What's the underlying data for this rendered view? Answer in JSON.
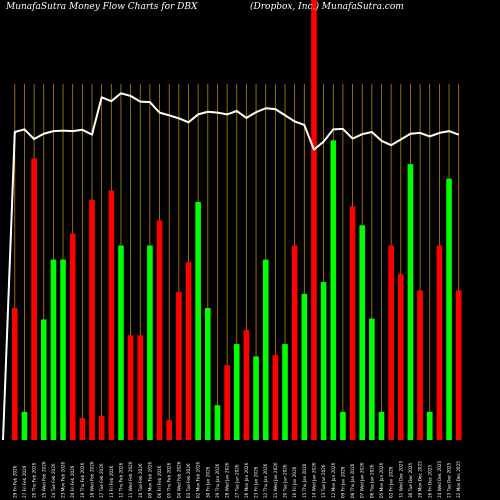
{
  "header": {
    "left": "MunafaSutra  Money Flow  Charts for DBX",
    "right": "(Dropbox, Inc.) MunafaSutra.com"
  },
  "colors": {
    "background": "#000000",
    "up": "#00ff00",
    "down": "#ff0000",
    "grid": "#b8860b",
    "line": "#ffffff"
  },
  "chart_data": {
    "type": "bar",
    "title": "MunafaSutra  Money Flow  Charts for DBX",
    "subtitle": "(Dropbox, Inc.) MunafaSutra.com",
    "ylim": [
      0,
      100
    ],
    "grid": true,
    "categories": [
      "29 Fri Feb 2026",
      "27 Fri Feb 2026",
      "26 Thu Feb 2026",
      "25 Wed Feb 2026",
      "24 Tue Feb 2026",
      "23 Mon Feb 2026",
      "20 Fri Feb 2026",
      "19 Thu Feb 2026",
      "18 Wed Feb 2026",
      "17 Tue Feb 2026",
      "13 Fri Feb 2026",
      "12 Thu Feb 2026",
      "11 Wed Feb 2026",
      "10 Tue Feb 2026",
      "09 Mon Feb 2026",
      "06 Fri Feb 2026",
      "05 Thu Feb 2026",
      "04 Wed Feb 2026",
      "03 Tue Feb 2026",
      "02 Mon Feb 2026",
      "30 Fri Jan 2026",
      "29 Thu Jan 2026",
      "28 Wed Jan 2026",
      "27 Tue Jan 2026",
      "26 Mon Jan 2026",
      "23 Fri Jan 2026",
      "22 Thu Jan 2026",
      "21 Wed Jan 2026",
      "20 Tue Jan 2026",
      "16 Fri Jan 2026",
      "15 Thu Jan 2026",
      "14 Wed Jan 2026",
      "13 Tue Jan 2026",
      "12 Mon Jan 2026",
      "09 Fri Jan 2026",
      "08 Thu Jan 2026",
      "07 Wed Jan 2026",
      "06 Tue Jan 2026",
      "05 Mon Jan 2026",
      "02 Fri Jan 2026",
      "31 Wed Dec 2025",
      "30 Tue Dec 2025",
      "29 Mon Dec 2025",
      "26 Fri Dec 2025",
      "24 Wed Dec 2025",
      "23 Tue Dec 2025",
      "22 Mon Dec 2025"
    ],
    "series": [
      {
        "values": [
          30.0,
          6.4,
          64.0,
          27.4,
          41.0,
          41.0,
          46.9,
          5.0,
          54.6,
          5.5,
          56.7,
          44.2,
          23.8,
          23.8,
          44.2,
          49.9,
          4.5,
          33.6,
          40.4,
          54.1,
          30.0,
          7.9,
          17.0,
          21.8,
          25.0,
          19.0,
          41.0,
          19.3,
          21.8,
          44.2,
          33.2,
          100.0,
          35.9,
          68.1,
          6.4,
          53.1,
          48.8,
          27.6,
          6.4,
          44.2,
          37.7,
          62.7,
          34.0,
          6.4,
          44.2,
          59.4,
          34.0
        ],
        "directions": [
          "down",
          "up",
          "down",
          "up",
          "up",
          "up",
          "down",
          "down",
          "down",
          "down",
          "down",
          "up",
          "down",
          "down",
          "up",
          "down",
          "down",
          "down",
          "down",
          "up",
          "up",
          "up",
          "down",
          "up",
          "down",
          "up",
          "up",
          "down",
          "up",
          "down",
          "up",
          "down",
          "up",
          "up",
          "up",
          "down",
          "up",
          "up",
          "up",
          "down",
          "down",
          "up",
          "down",
          "up",
          "down",
          "up",
          "down"
        ]
      },
      {
        "values": [
          70.0,
          70.6,
          68.4,
          69.6,
          70.2,
          70.3,
          70.2,
          70.5,
          69.4,
          77.9,
          77.0,
          78.8,
          78.2,
          76.9,
          76.8,
          74.4,
          73.8,
          73.1,
          72.2,
          74.0,
          74.6,
          74.4,
          74.0,
          74.8,
          73.2,
          74.5,
          75.4,
          75.2,
          73.8,
          72.4,
          71.6,
          66.0,
          67.8,
          70.6,
          70.7,
          68.5,
          69.5,
          70.0,
          68.0,
          67.0,
          68.3,
          69.6,
          69.8,
          69.0,
          69.8,
          70.2,
          69.4
        ]
      }
    ]
  }
}
